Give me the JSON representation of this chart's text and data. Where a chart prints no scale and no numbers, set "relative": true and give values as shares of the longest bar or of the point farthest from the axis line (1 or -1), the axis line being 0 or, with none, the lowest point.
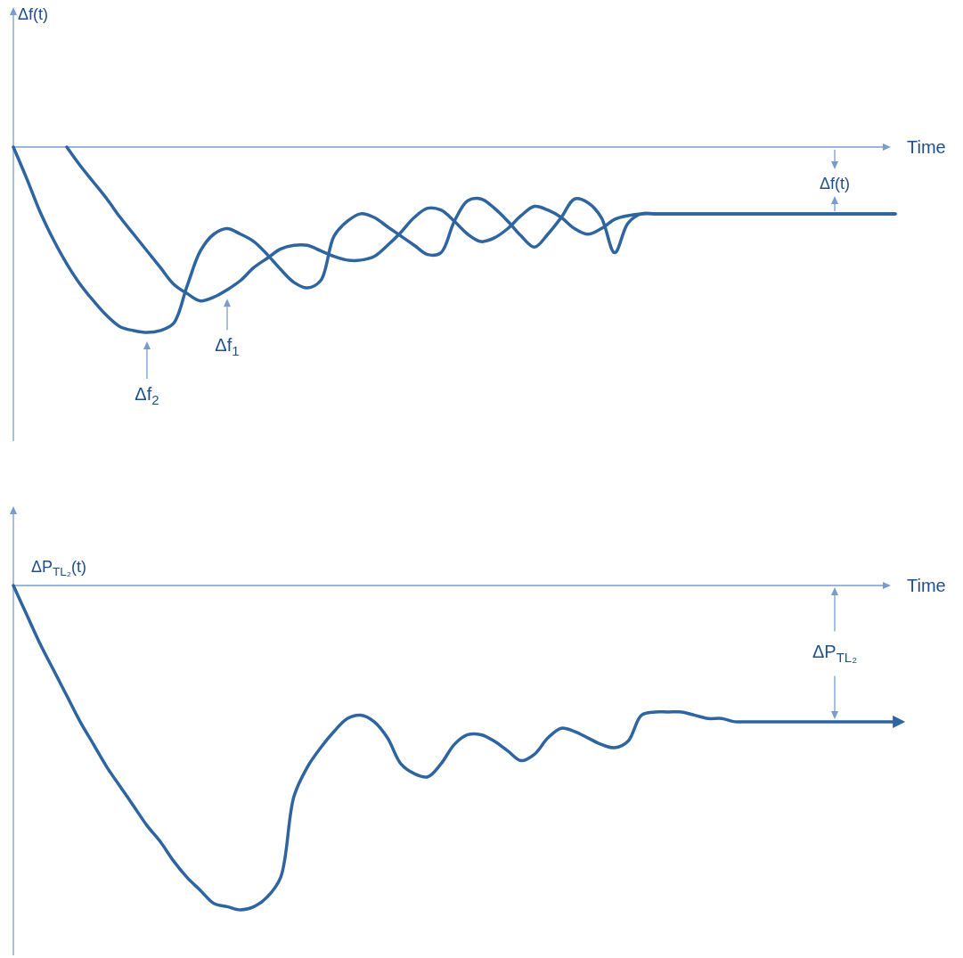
{
  "chart_data": [
    {
      "type": "line",
      "ylabel": "Δf(t)",
      "xlabel": "Time",
      "relative": true,
      "annotations": [
        "Δf(t)"
      ],
      "categories": [
        null,
        null,
        null,
        null,
        null,
        null,
        null,
        null,
        null,
        null,
        null,
        null,
        null,
        null,
        null,
        null,
        null,
        null,
        null,
        null,
        null,
        null,
        null,
        null,
        null,
        null,
        null,
        null,
        null,
        null,
        null,
        null,
        null,
        null,
        null,
        null,
        null,
        null,
        null,
        null,
        null,
        null,
        null,
        null,
        null,
        null,
        null,
        null,
        null,
        null,
        null,
        null,
        null,
        null,
        null,
        null,
        null,
        null,
        null,
        null,
        null,
        null,
        null,
        null,
        null,
        null,
        null
      ],
      "series": [
        {
          "name": "Δf$_{1}$",
          "color": "#2e64a0",
          "values": [
            null,
            null,
            null,
            null,
            0,
            -0.1,
            -0.19,
            -0.28,
            -0.38,
            -0.47,
            -0.56,
            -0.65,
            -0.74,
            -0.79,
            -0.83,
            -0.81,
            -0.77,
            -0.72,
            -0.65,
            -0.6,
            -0.55,
            -0.53,
            -0.53,
            -0.56,
            -0.59,
            -0.61,
            -0.61,
            -0.59,
            -0.53,
            -0.46,
            -0.38,
            -0.33,
            -0.34,
            -0.4,
            -0.47,
            -0.51,
            -0.49,
            -0.44,
            -0.37,
            -0.32,
            -0.34,
            -0.38,
            -0.44,
            -0.47,
            -0.44,
            -0.39,
            -0.37,
            -0.36,
            -0.36,
            -0.36,
            -0.36,
            -0.36,
            -0.36,
            -0.36,
            -0.36,
            -0.36,
            -0.36,
            -0.36,
            -0.36,
            -0.36,
            -0.36,
            -0.36,
            -0.36,
            -0.36,
            -0.36,
            -0.36,
            -0.36
          ]
        },
        {
          "name": "Δf$_{2}$",
          "color": "#2e64a0",
          "values": [
            0,
            -0.17,
            -0.35,
            -0.5,
            -0.63,
            -0.74,
            -0.83,
            -0.91,
            -0.97,
            -0.99,
            -1,
            -0.99,
            -0.95,
            -0.75,
            -0.56,
            -0.47,
            -0.44,
            -0.47,
            -0.51,
            -0.58,
            -0.66,
            -0.73,
            -0.76,
            -0.72,
            -0.48,
            -0.4,
            -0.36,
            -0.38,
            -0.43,
            -0.48,
            -0.53,
            -0.58,
            -0.57,
            -0.4,
            -0.29,
            -0.28,
            -0.33,
            -0.4,
            -0.48,
            -0.54,
            -0.47,
            -0.38,
            -0.28,
            -0.3,
            -0.38,
            -0.57,
            -0.41,
            -0.36,
            -0.36,
            -0.36,
            -0.36,
            -0.36,
            -0.36,
            -0.36,
            -0.36,
            -0.36,
            -0.36,
            -0.36,
            -0.36,
            -0.36,
            -0.36,
            -0.36,
            -0.36,
            -0.36,
            -0.36,
            -0.36,
            -0.36
          ]
        }
      ]
    },
    {
      "type": "line",
      "ylabel": "ΔP$_{TL₂}$(t)",
      "xlabel": "Time",
      "relative": true,
      "annotations": [
        "ΔP$_{TL₂}$"
      ],
      "categories": [
        null,
        null,
        null,
        null,
        null,
        null,
        null,
        null,
        null,
        null,
        null,
        null,
        null,
        null,
        null,
        null,
        null,
        null,
        null,
        null,
        null,
        null,
        null,
        null,
        null,
        null,
        null,
        null,
        null,
        null,
        null,
        null,
        null,
        null,
        null,
        null,
        null,
        null,
        null,
        null,
        null,
        null,
        null,
        null,
        null,
        null,
        null,
        null,
        null,
        null,
        null,
        null,
        null,
        null,
        null,
        null,
        null,
        null,
        null,
        null,
        null,
        null,
        null,
        null,
        null,
        null,
        null
      ],
      "series": [
        {
          "color": "#2e64a0",
          "values": [
            0,
            -0.09,
            -0.18,
            -0.26,
            -0.34,
            -0.42,
            -0.49,
            -0.56,
            -0.62,
            -0.68,
            -0.74,
            -0.79,
            -0.85,
            -0.9,
            -0.94,
            -0.98,
            -0.99,
            -1,
            -0.99,
            -0.96,
            -0.9,
            -0.65,
            -0.56,
            -0.5,
            -0.45,
            -0.41,
            -0.4,
            -0.42,
            -0.47,
            -0.55,
            -0.58,
            -0.59,
            -0.55,
            -0.49,
            -0.46,
            -0.46,
            -0.48,
            -0.51,
            -0.54,
            -0.52,
            -0.47,
            -0.44,
            -0.45,
            -0.47,
            -0.49,
            -0.5,
            -0.48,
            -0.4,
            -0.39,
            -0.39,
            -0.39,
            -0.4,
            -0.41,
            -0.41,
            -0.42,
            -0.42,
            -0.42,
            -0.42,
            -0.42,
            -0.42,
            -0.42,
            -0.42,
            -0.42,
            -0.42,
            -0.42,
            -0.42,
            -0.42
          ]
        }
      ]
    }
  ]
}
